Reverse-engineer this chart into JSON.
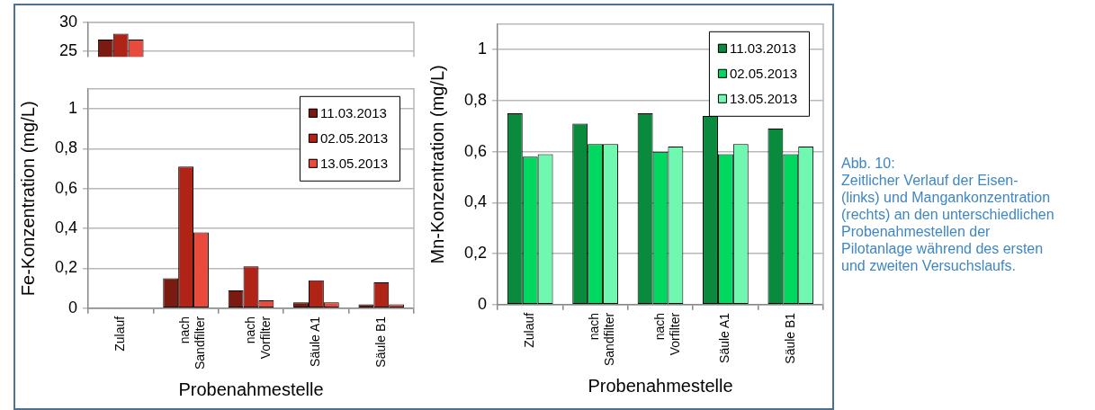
{
  "chart_data": [
    {
      "type": "bar",
      "categories": [
        null,
        null,
        null,
        null,
        null
      ],
      "series": [
        {
          "color": "#7b1a10",
          "values": [
            27,
            null,
            null,
            null,
            null
          ]
        },
        {
          "color": "#b02418",
          "values": [
            28,
            null,
            null,
            null,
            null
          ]
        },
        {
          "color": "#e84a3c",
          "values": [
            27,
            null,
            null,
            null,
            null
          ]
        }
      ],
      "ylim": [
        24,
        30
      ],
      "yticks": [
        25,
        30
      ],
      "grid": "y",
      "tick_labels": "y"
    },
    {
      "type": "bar",
      "ylabel": "Fe-Konzentration (mg/L)",
      "xlabel": "Probenahmestelle",
      "categories": [
        "Zulauf",
        "nach\nSandfilter",
        "nach\nVorfilter",
        "Säule A1",
        "Säule B1"
      ],
      "series": [
        {
          "name": "11.03.2013",
          "color": "#7b1a10",
          "values": [
            null,
            0.15,
            0.09,
            0.03,
            0.02
          ]
        },
        {
          "name": "02.05.2013",
          "color": "#b02418",
          "values": [
            null,
            0.71,
            0.21,
            0.14,
            0.13
          ]
        },
        {
          "name": "13.05.2013",
          "color": "#e84a3c",
          "values": [
            null,
            0.38,
            0.04,
            0.03,
            0.02
          ]
        }
      ],
      "ylim": [
        0,
        1.1
      ],
      "yticks": [
        0,
        {
          "value": 0.2,
          "label": "0,2"
        },
        {
          "value": 0.4,
          "label": "0,4"
        },
        {
          "value": 0.6,
          "label": "0,6"
        },
        {
          "value": 0.8,
          "label": "0,8"
        },
        1
      ],
      "grid": "y",
      "legend": "top right"
    },
    {
      "type": "bar",
      "ylabel": "Mn-Konzentration (mg/L)",
      "xlabel": "Probenahmestelle",
      "categories": [
        "Zulauf",
        "nach\nSandfilter",
        "nach\nVorfilter",
        "Säule A1",
        "Säule B1"
      ],
      "series": [
        {
          "name": "11.03.2013",
          "color": "#0a8a3c",
          "values": [
            0.75,
            0.71,
            0.75,
            0.74,
            0.69
          ]
        },
        {
          "name": "02.05.2013",
          "color": "#00d860",
          "values": [
            0.58,
            0.63,
            0.6,
            0.59,
            0.59
          ]
        },
        {
          "name": "13.05.2013",
          "color": "#70f8b0",
          "values": [
            0.59,
            0.63,
            0.62,
            0.63,
            0.62
          ]
        }
      ],
      "ylim": [
        0,
        1.1
      ],
      "yticks": [
        0,
        {
          "value": 0.2,
          "label": "0,2"
        },
        {
          "value": 0.4,
          "label": "0,4"
        },
        {
          "value": 0.6,
          "label": "0,6"
        },
        {
          "value": 0.8,
          "label": "0,8"
        },
        1
      ],
      "grid": "y",
      "legend": "top right"
    },
    {
      "type": "other",
      "title": "Abb. 10:",
      "annotations": [
        "Zeitlicher Verlauf der Eisen- (links) und Mangankonzentration (rechts) an den unterschiedlichen Probenahmestellen der Pilotanlage während des ersten und zweiten Versuchslaufs."
      ]
    }
  ]
}
